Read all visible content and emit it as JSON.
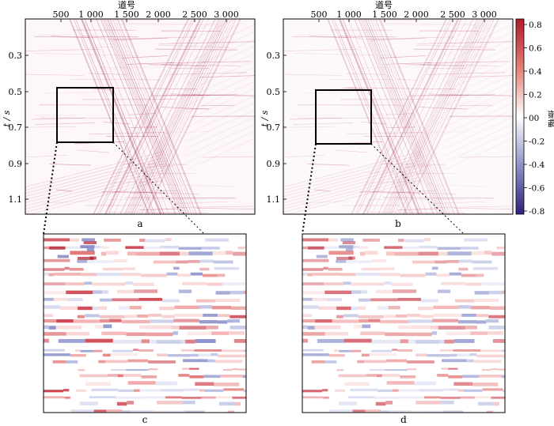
{
  "x_axis_title": "道号",
  "y_axis_title": "t / s",
  "x_ticks": [
    "500",
    "1 000",
    "1 500",
    "2 000",
    "2 500",
    "3 000"
  ],
  "y_ticks": [
    "0.3",
    "0.5",
    "0.7",
    "0.9",
    "1.1"
  ],
  "colorbar": {
    "title": "振幅",
    "ticks": [
      "0.8",
      "0.6",
      "0.4",
      "0.2",
      "00",
      "-0.2",
      "-0.4",
      "-0.6",
      "-0.8"
    ],
    "colors": [
      "#b2182b",
      "#f4a582",
      "#ffffff",
      "#92c5de",
      "#2c1f7a"
    ]
  },
  "panels": {
    "a": "a",
    "b": "b",
    "c": "c",
    "d": "d"
  }
}
